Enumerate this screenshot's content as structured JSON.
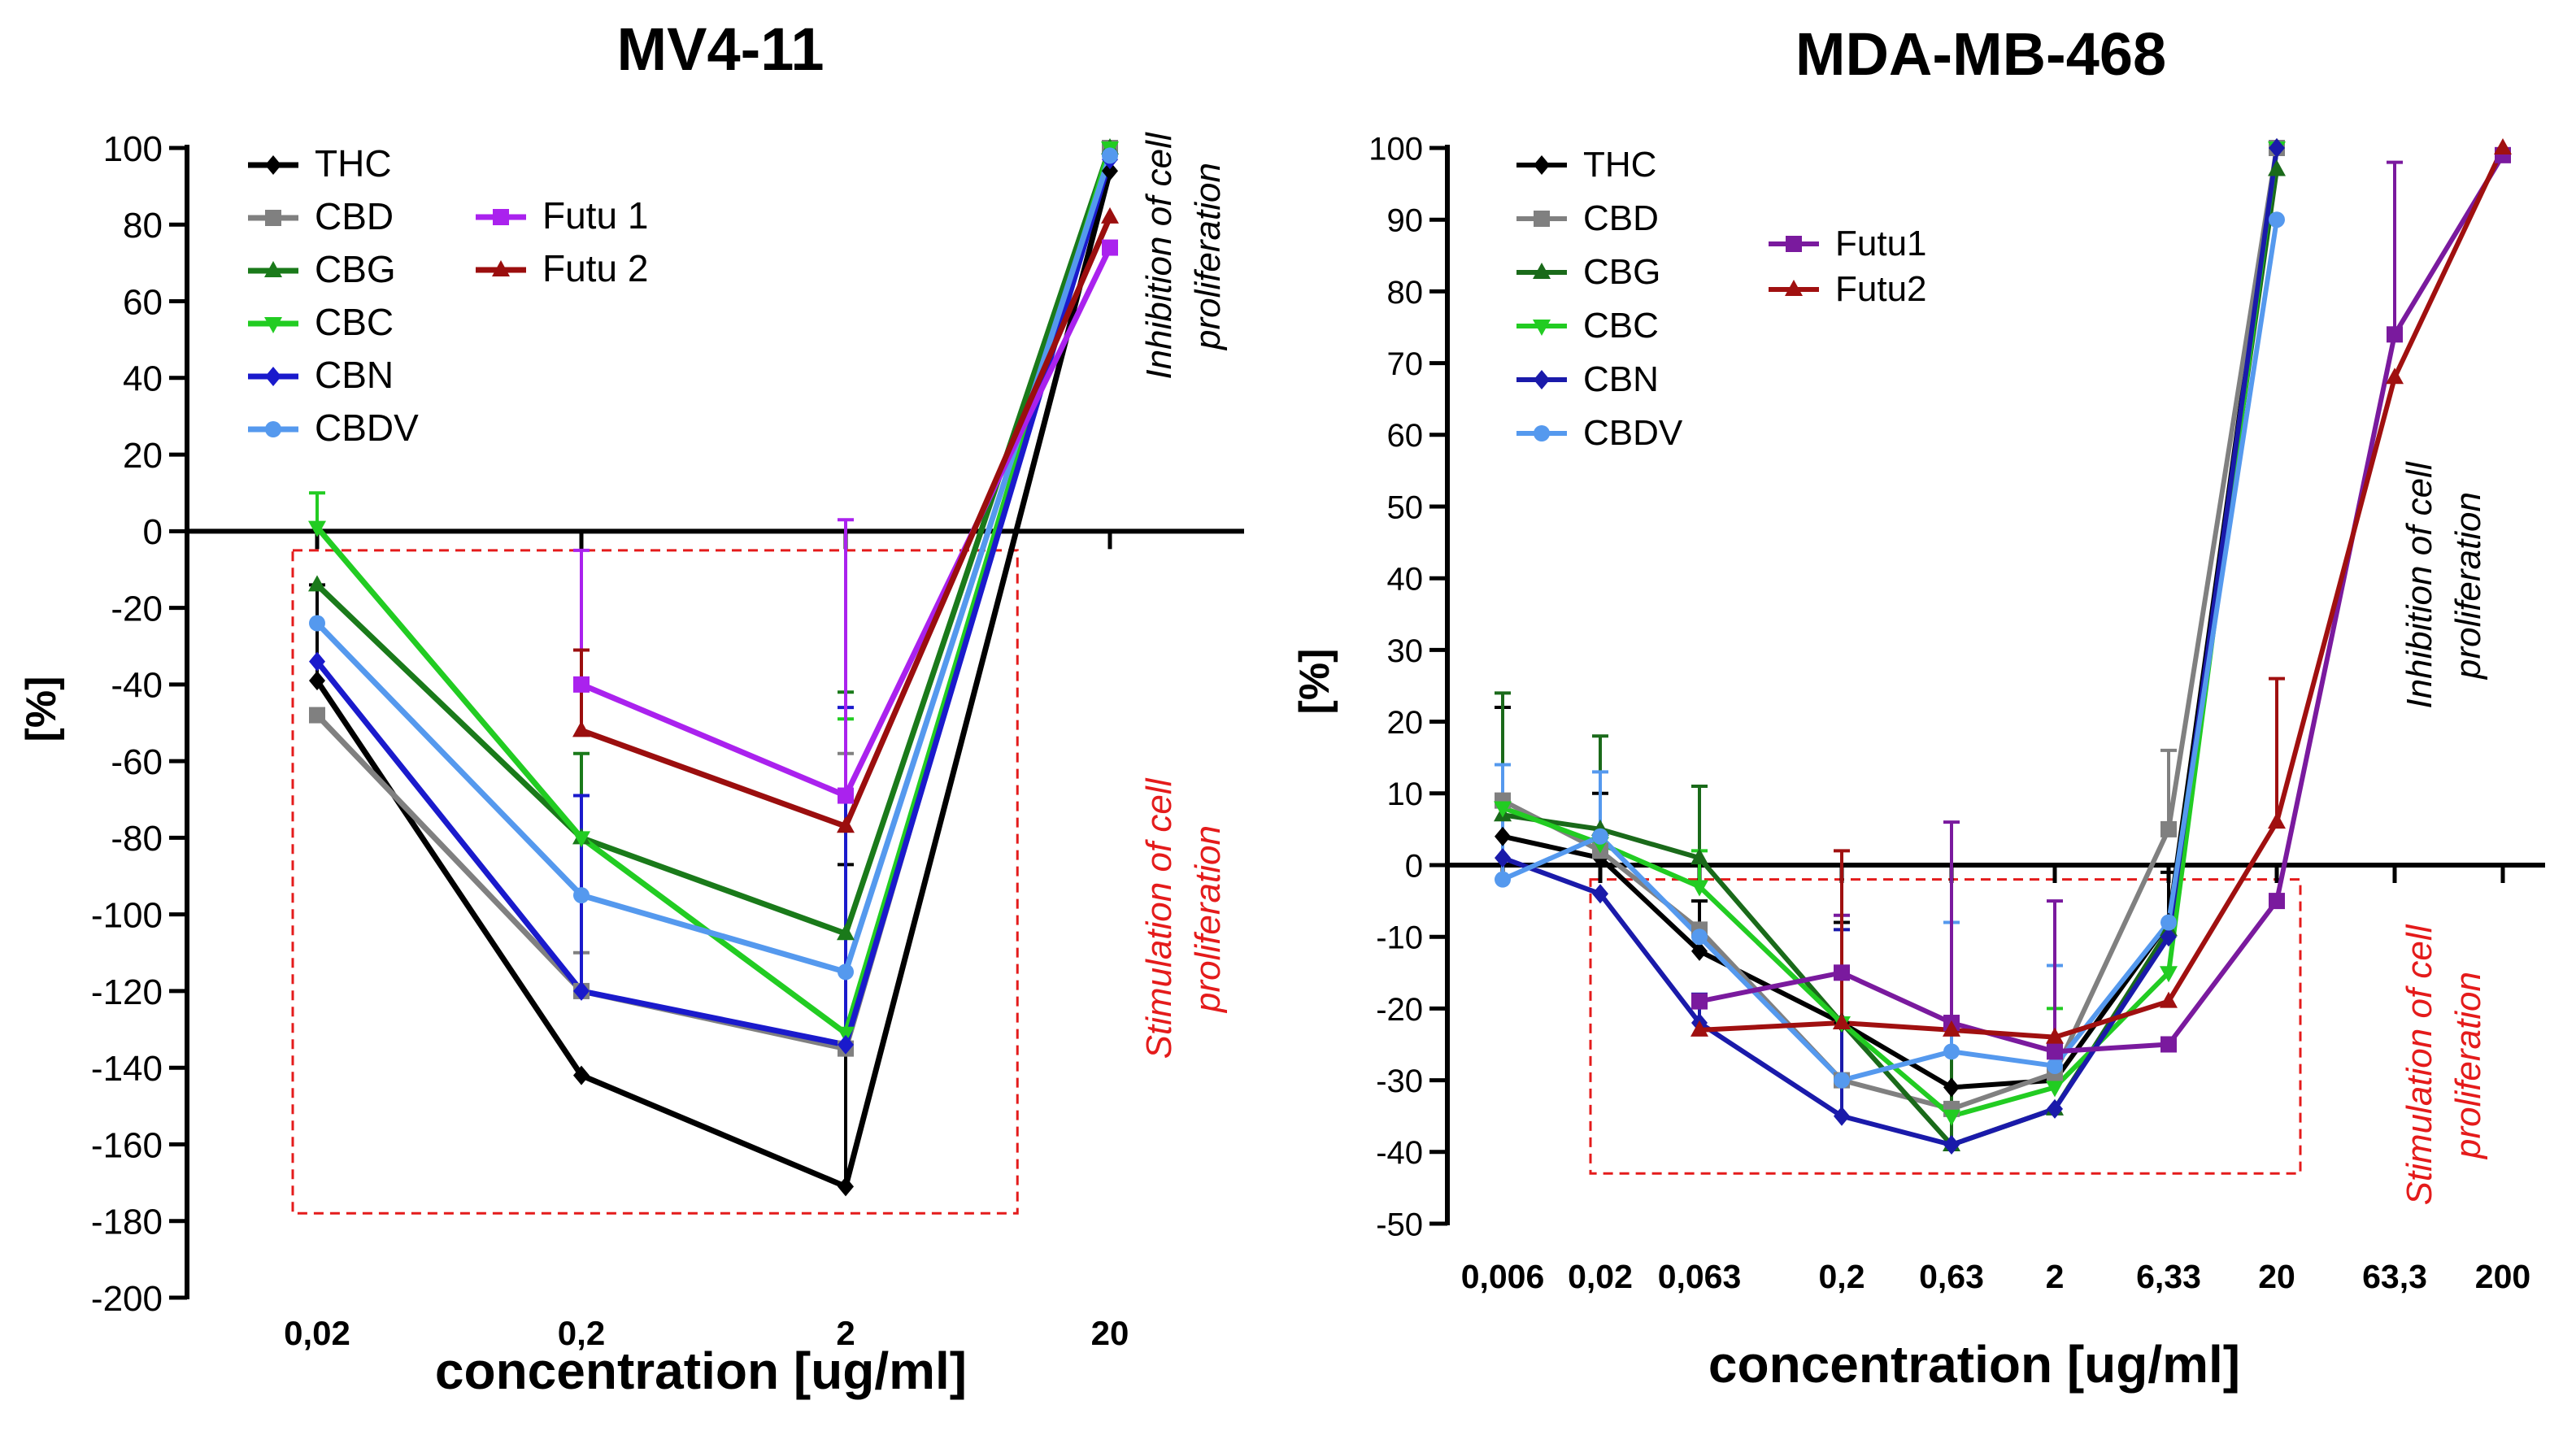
{
  "chart_data": [
    {
      "type": "line",
      "title": "MV4-11",
      "xlabel": "concentration [ug/ml]",
      "ylabel": "[%]",
      "ylim": [
        -200,
        100
      ],
      "yticks": [
        100,
        80,
        60,
        40,
        20,
        0,
        -20,
        -40,
        -60,
        -80,
        -100,
        -120,
        -140,
        -160,
        -180,
        -200
      ],
      "categories": [
        "0,02",
        "0,2",
        "2",
        "20"
      ],
      "grid": false,
      "legend_position": "top-left",
      "legend_columns": [
        [
          "THC",
          "CBD",
          "CBG",
          "CBC",
          "CBN",
          "CBDV"
        ],
        [
          "Futu 1",
          "Futu 2"
        ]
      ],
      "series": [
        {
          "name": "THC",
          "color": "#000000",
          "marker": "diamond",
          "values": [
            -39,
            -142,
            -171,
            94
          ],
          "error": [
            25,
            0,
            84,
            0
          ]
        },
        {
          "name": "CBD",
          "color": "#808080",
          "marker": "square",
          "values": [
            -48,
            -120,
            -135,
            100
          ],
          "error": [
            0,
            10,
            77,
            0
          ]
        },
        {
          "name": "CBG",
          "color": "#1a7a1a",
          "marker": "triangle-up",
          "values": [
            -14,
            -80,
            -105,
            100
          ],
          "error": [
            0,
            22,
            63,
            0
          ]
        },
        {
          "name": "CBC",
          "color": "#22cc22",
          "marker": "triangle-down",
          "values": [
            1,
            -80,
            -131,
            100
          ],
          "error": [
            9,
            0,
            82,
            0
          ]
        },
        {
          "name": "CBN",
          "color": "#1a1acc",
          "marker": "diamond",
          "values": [
            -34,
            -120,
            -134,
            97
          ],
          "error": [
            0,
            51,
            88,
            0
          ]
        },
        {
          "name": "CBDV",
          "color": "#5599ee",
          "marker": "circle",
          "values": [
            -24,
            -95,
            -115,
            98
          ],
          "error": [
            0,
            0,
            0,
            0
          ]
        },
        {
          "name": "Futu 1",
          "color": "#aa22ee",
          "marker": "square",
          "values": [
            null,
            -40,
            -69,
            74
          ],
          "error": [
            0,
            35,
            72,
            0
          ]
        },
        {
          "name": "Futu 2",
          "color": "#9b0e0e",
          "marker": "triangle-up",
          "values": [
            null,
            -52,
            -77,
            82
          ],
          "error": [
            0,
            21,
            0,
            0
          ]
        }
      ],
      "annotations": {
        "inhibition": "Inhibition of cell proliferation",
        "stimulation": "Stimulation of cell proliferation"
      },
      "stimulation_region": {
        "x_from_category": 0,
        "x_to_category": 2.65,
        "y_from": -178,
        "y_to": -5
      }
    },
    {
      "type": "line",
      "title": "MDA-MB-468",
      "xlabel": "concentration [ug/ml]",
      "ylabel": "[%]",
      "ylim": [
        -50,
        100
      ],
      "yticks": [
        100,
        90,
        80,
        70,
        60,
        50,
        40,
        30,
        20,
        10,
        0,
        -10,
        -20,
        -30,
        -40,
        -50
      ],
      "categories": [
        "0,006",
        "0,02",
        "0,063",
        "0,2",
        "0,63",
        "2",
        "6,33",
        "20",
        "63,3",
        "200"
      ],
      "grid": false,
      "legend_position": "top-left",
      "legend_columns": [
        [
          "THC",
          "CBD",
          "CBG",
          "CBC",
          "CBN",
          "CBDV"
        ],
        [
          "Futu1",
          "Futu2"
        ]
      ],
      "series": [
        {
          "name": "THC",
          "color": "#000000",
          "marker": "diamond",
          "values": [
            4,
            1,
            -12,
            -22,
            -31,
            -30,
            -8,
            100,
            null,
            null
          ],
          "error": [
            18,
            9,
            7,
            14,
            0,
            0,
            7,
            0,
            0,
            0
          ]
        },
        {
          "name": "CBD",
          "color": "#808080",
          "marker": "square",
          "values": [
            9,
            2,
            -9,
            -30,
            -34,
            -29,
            5,
            100,
            null,
            null
          ],
          "error": [
            0,
            0,
            0,
            0,
            0,
            0,
            11,
            0,
            0,
            0
          ]
        },
        {
          "name": "CBG",
          "color": "#1a6a1a",
          "marker": "triangle-up",
          "values": [
            7,
            5,
            1,
            -22,
            -39,
            -34,
            -9,
            97,
            null,
            null
          ],
          "error": [
            17,
            13,
            10,
            0,
            17,
            0,
            0,
            0,
            0,
            0
          ]
        },
        {
          "name": "CBC",
          "color": "#22cc22",
          "marker": "triangle-down",
          "values": [
            8,
            3,
            -3,
            -22,
            -35,
            -31,
            -15,
            100,
            null,
            null
          ],
          "error": [
            0,
            0,
            5,
            0,
            0,
            11,
            0,
            0,
            0,
            0
          ]
        },
        {
          "name": "CBN",
          "color": "#1a1aaa",
          "marker": "diamond",
          "values": [
            1,
            -4,
            -22,
            -35,
            -39,
            -34,
            -10,
            100,
            null,
            null
          ],
          "error": [
            0,
            0,
            4,
            26,
            0,
            0,
            0,
            0,
            0,
            0
          ]
        },
        {
          "name": "CBDV",
          "color": "#5599ee",
          "marker": "circle",
          "values": [
            -2,
            4,
            -10,
            -30,
            -26,
            -28,
            -8,
            90,
            null,
            null
          ],
          "error": [
            16,
            9,
            0,
            0,
            18,
            14,
            0,
            0,
            0,
            0
          ]
        },
        {
          "name": "Futu1",
          "color": "#7a1a9e",
          "marker": "square",
          "values": [
            null,
            null,
            -19,
            -15,
            -22,
            -26,
            -25,
            -5,
            74,
            99
          ],
          "error": [
            0,
            0,
            0,
            8,
            28,
            21,
            0,
            0,
            24,
            0
          ]
        },
        {
          "name": "Futu2",
          "color": "#a01010",
          "marker": "triangle-up",
          "values": [
            null,
            null,
            -23,
            -22,
            -23,
            -24,
            -19,
            6,
            68,
            100
          ],
          "error": [
            0,
            0,
            0,
            24,
            0,
            0,
            0,
            20,
            0,
            0
          ]
        }
      ],
      "annotations": {
        "inhibition": "Inhibition of cell proliferation",
        "stimulation": "Stimulation of cell proliferation"
      },
      "stimulation_region": {
        "x_from_category": 0.9,
        "x_to_category": 7.2,
        "y_from": -43,
        "y_to": -2
      }
    }
  ]
}
